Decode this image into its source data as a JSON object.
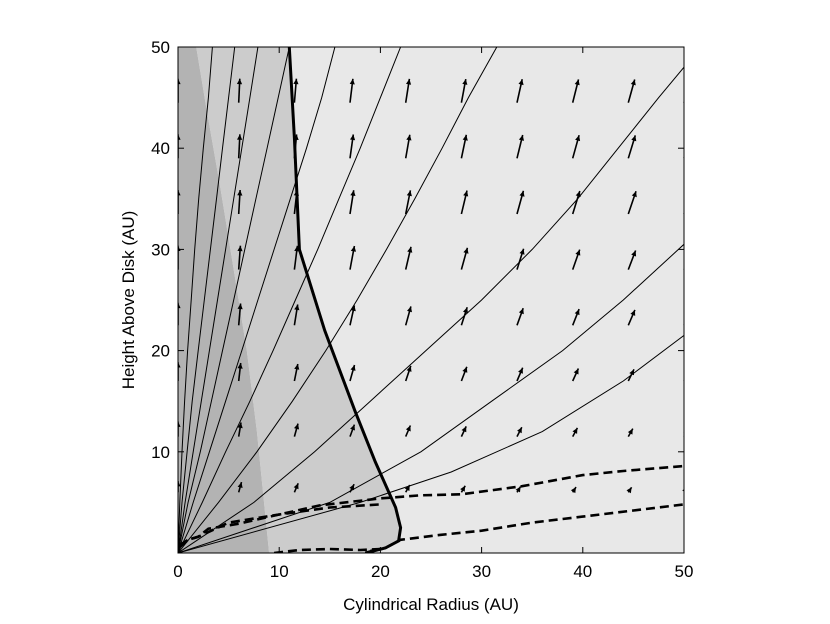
{
  "chart_data": {
    "type": "field",
    "title": "",
    "xlabel": "Cylindrical Radius (AU)",
    "ylabel": "Height Above Disk (AU)",
    "xlim": [
      0,
      50
    ],
    "ylim": [
      0,
      50
    ],
    "xticks": [
      0,
      10,
      20,
      30,
      40,
      50
    ],
    "yticks": [
      10,
      20,
      30,
      40,
      50
    ],
    "grid": false,
    "legend": "none",
    "colors": {
      "region_dark": "#b3b3b3",
      "region_medium": "#cccccc",
      "region_light": "#e8e8e8",
      "lines": "#000000"
    },
    "regions": [
      {
        "name": "dark",
        "polygon": [
          [
            0,
            0
          ],
          [
            0,
            50
          ],
          [
            1.8,
            50
          ],
          [
            2.8,
            44
          ],
          [
            4.2,
            36
          ],
          [
            5.5,
            28
          ],
          [
            6.8,
            20
          ],
          [
            7.8,
            12
          ],
          [
            8.4,
            6
          ],
          [
            9.0,
            0
          ]
        ]
      },
      {
        "name": "medium",
        "polygon": [
          [
            1.8,
            50
          ],
          [
            11,
            50
          ],
          [
            11.5,
            41
          ],
          [
            12,
            30
          ],
          [
            14.5,
            22
          ],
          [
            17.5,
            14
          ],
          [
            19.5,
            9
          ],
          [
            21.5,
            4.5
          ],
          [
            22,
            2.5
          ],
          [
            21.8,
            1.2
          ],
          [
            20.5,
            0.5
          ],
          [
            18.5,
            0
          ],
          [
            9.0,
            0
          ],
          [
            8.4,
            6
          ],
          [
            7.8,
            12
          ],
          [
            6.8,
            20
          ],
          [
            5.5,
            28
          ],
          [
            4.2,
            36
          ],
          [
            2.8,
            44
          ]
        ]
      }
    ],
    "field_lines": [
      [
        [
          0,
          0
        ],
        [
          0.18,
          5
        ],
        [
          0.4,
          10
        ],
        [
          0.65,
          15
        ],
        [
          0.95,
          20
        ],
        [
          1.3,
          25
        ],
        [
          1.65,
          30
        ],
        [
          2.05,
          35
        ],
        [
          2.5,
          40
        ],
        [
          3.0,
          45
        ],
        [
          3.4,
          50
        ]
      ],
      [
        [
          0,
          0
        ],
        [
          0.4,
          5
        ],
        [
          0.9,
          10
        ],
        [
          1.4,
          15
        ],
        [
          2.0,
          20
        ],
        [
          2.6,
          25
        ],
        [
          3.2,
          30
        ],
        [
          3.8,
          35
        ],
        [
          4.4,
          40
        ],
        [
          5.0,
          45
        ],
        [
          5.6,
          50
        ]
      ],
      [
        [
          0,
          0
        ],
        [
          0.7,
          5
        ],
        [
          1.5,
          10
        ],
        [
          2.3,
          15
        ],
        [
          3.1,
          20
        ],
        [
          3.9,
          25
        ],
        [
          4.7,
          30
        ],
        [
          5.5,
          35
        ],
        [
          6.3,
          40
        ],
        [
          7.1,
          45
        ],
        [
          7.9,
          50
        ]
      ],
      [
        [
          0,
          0
        ],
        [
          1.0,
          5
        ],
        [
          2.2,
          10
        ],
        [
          3.3,
          15
        ],
        [
          4.4,
          20
        ],
        [
          5.5,
          25
        ],
        [
          6.6,
          30
        ],
        [
          7.7,
          35
        ],
        [
          8.8,
          40
        ],
        [
          9.9,
          45
        ],
        [
          11,
          50
        ]
      ],
      [
        [
          0,
          0
        ],
        [
          1.5,
          5
        ],
        [
          3.1,
          10
        ],
        [
          4.7,
          15
        ],
        [
          6.3,
          20
        ],
        [
          7.9,
          25
        ],
        [
          9.5,
          30
        ],
        [
          11.1,
          35
        ],
        [
          12.7,
          40
        ],
        [
          14.2,
          45
        ],
        [
          15.5,
          50
        ]
      ],
      [
        [
          0,
          0
        ],
        [
          2.4,
          5
        ],
        [
          4.7,
          10
        ],
        [
          7.1,
          15
        ],
        [
          9.4,
          20
        ],
        [
          11.6,
          25
        ],
        [
          13.8,
          30
        ],
        [
          15.9,
          35
        ],
        [
          18,
          40
        ],
        [
          20,
          45
        ],
        [
          22,
          50
        ]
      ],
      [
        [
          0,
          0
        ],
        [
          4.0,
          5
        ],
        [
          7.8,
          10
        ],
        [
          11.3,
          15
        ],
        [
          14.6,
          20
        ],
        [
          17.7,
          25
        ],
        [
          20.6,
          30
        ],
        [
          23.4,
          35
        ],
        [
          26.1,
          40
        ],
        [
          28.7,
          45
        ],
        [
          31.5,
          50
        ]
      ],
      [
        [
          0,
          0
        ],
        [
          7.5,
          5
        ],
        [
          13.5,
          10
        ],
        [
          19,
          15
        ],
        [
          24.5,
          20
        ],
        [
          30,
          25
        ],
        [
          35,
          30
        ],
        [
          39.5,
          35
        ],
        [
          43.5,
          40
        ],
        [
          47.5,
          45
        ],
        [
          50,
          48
        ]
      ],
      [
        [
          0,
          0
        ],
        [
          15,
          5
        ],
        [
          24,
          10
        ],
        [
          31,
          15
        ],
        [
          38,
          20
        ],
        [
          44,
          25
        ],
        [
          50,
          30.5
        ]
      ],
      [
        [
          0,
          0
        ],
        [
          18,
          5
        ],
        [
          27,
          8
        ],
        [
          36,
          12
        ],
        [
          44,
          17
        ],
        [
          50,
          21.5
        ]
      ]
    ],
    "contour_solid": [
      [
        11,
        50
      ],
      [
        11.5,
        41
      ],
      [
        12,
        30
      ],
      [
        14.5,
        22
      ],
      [
        17.5,
        14
      ],
      [
        19.5,
        9
      ],
      [
        21.5,
        4.5
      ],
      [
        22,
        2.5
      ],
      [
        21.8,
        1.2
      ],
      [
        20.5,
        0.5
      ],
      [
        18.5,
        0
      ]
    ],
    "contour_dashed": [
      [
        [
          0.2,
          0.6
        ],
        [
          1,
          1.3
        ],
        [
          2,
          1.6
        ],
        [
          3,
          2.4
        ],
        [
          6,
          2.9
        ],
        [
          10,
          3.8
        ],
        [
          14,
          4.7
        ],
        [
          20,
          5.4
        ],
        [
          24,
          5.7
        ],
        [
          28,
          5.8
        ],
        [
          34,
          6.6
        ],
        [
          40,
          7.7
        ],
        [
          44,
          8.1
        ],
        [
          50,
          8.6
        ]
      ],
      [
        [
          0.2,
          0.8
        ],
        [
          1,
          1.3
        ],
        [
          2,
          1.6
        ],
        [
          5,
          3
        ],
        [
          10,
          3.8
        ],
        [
          15,
          4.5
        ],
        [
          20,
          4.8
        ]
      ],
      [
        [
          9.5,
          0
        ],
        [
          12,
          0.3
        ],
        [
          15,
          0.4
        ],
        [
          18,
          0.3
        ],
        [
          20,
          0.4
        ]
      ],
      [
        [
          19,
          0.2
        ],
        [
          20.5,
          0.5
        ],
        [
          22,
          1.3
        ],
        [
          26,
          1.8
        ],
        [
          30,
          2.2
        ],
        [
          35,
          3
        ],
        [
          40,
          3.6
        ],
        [
          45,
          4.2
        ],
        [
          50,
          4.8
        ]
      ]
    ],
    "vector_grid": {
      "x": [
        0,
        6,
        11.5,
        17,
        22.5,
        28,
        33.5,
        39,
        44.5,
        50
      ],
      "y": [
        0,
        6,
        11.5,
        17,
        22.5,
        28,
        33.5,
        39,
        44.5,
        50
      ]
    }
  }
}
